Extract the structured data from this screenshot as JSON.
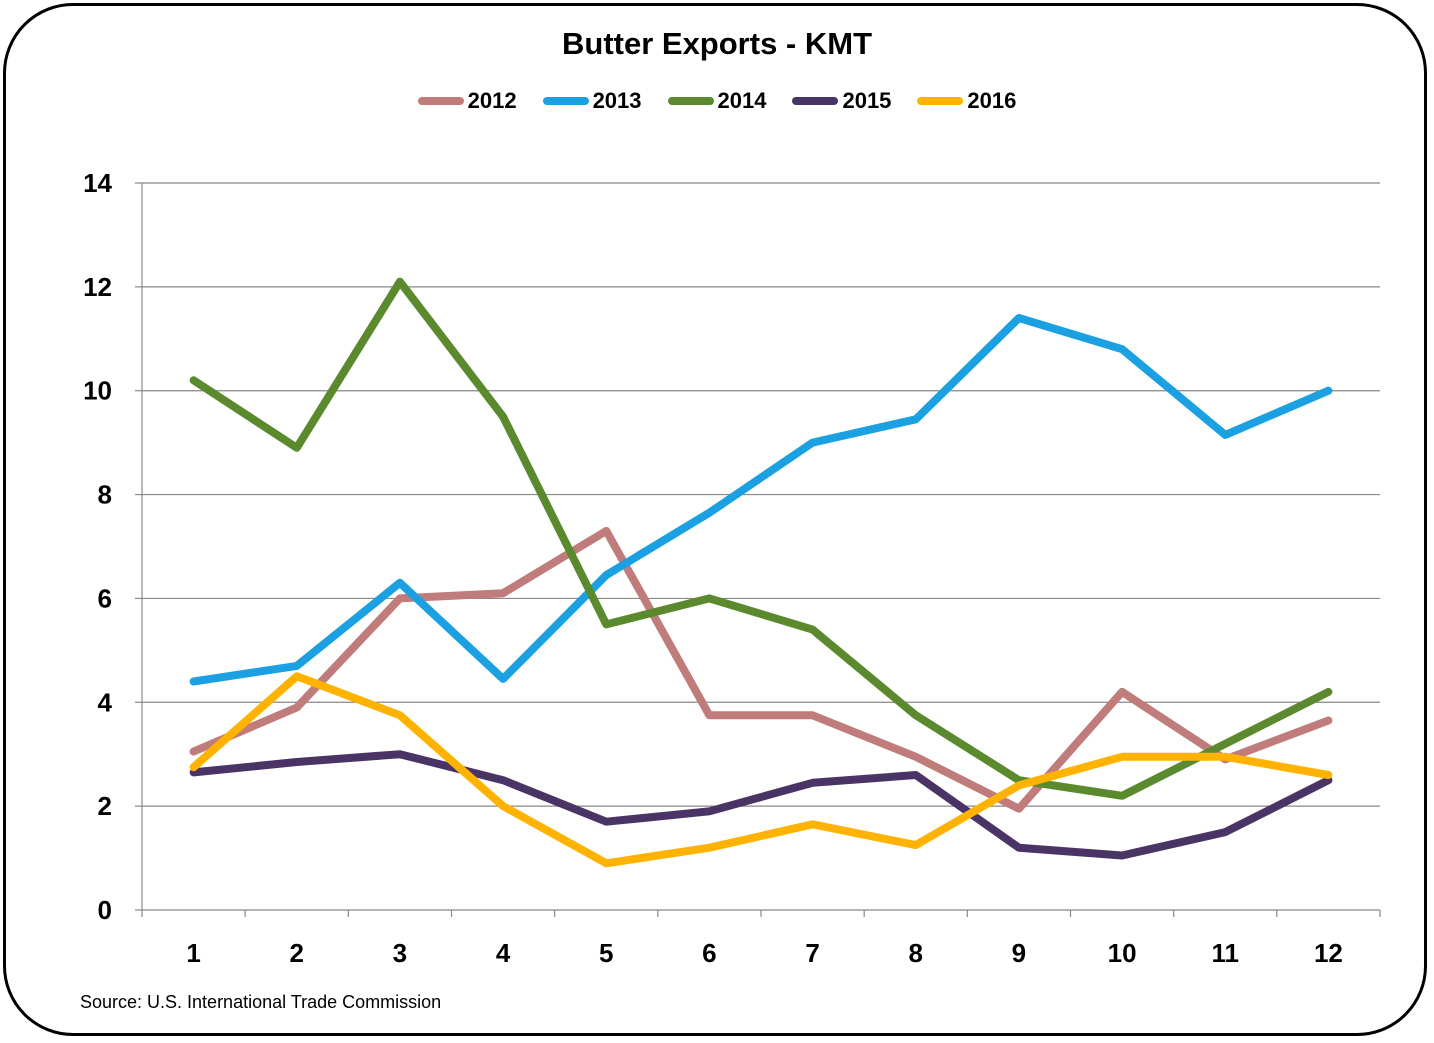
{
  "chart_data": {
    "type": "line",
    "title": "Butter Exports - KMT",
    "xlabel": "",
    "ylabel": "",
    "categories": [
      "1",
      "2",
      "3",
      "4",
      "5",
      "6",
      "7",
      "8",
      "9",
      "10",
      "11",
      "12"
    ],
    "ylim": [
      0,
      14
    ],
    "yticks": [
      0,
      2,
      4,
      6,
      8,
      10,
      12,
      14
    ],
    "grid": true,
    "legend_position": "top",
    "series": [
      {
        "name": "2012",
        "color": "#C07C7A",
        "values": [
          3.05,
          3.9,
          6.0,
          6.1,
          7.3,
          3.75,
          3.75,
          2.95,
          1.95,
          4.2,
          2.9,
          3.65
        ]
      },
      {
        "name": "2013",
        "color": "#1BA1E2",
        "values": [
          4.4,
          4.7,
          6.3,
          4.45,
          6.45,
          7.65,
          9.0,
          9.45,
          11.4,
          10.8,
          9.15,
          10.0
        ]
      },
      {
        "name": "2014",
        "color": "#5B8A2E",
        "values": [
          10.2,
          8.9,
          12.1,
          9.5,
          5.5,
          6.0,
          5.4,
          3.75,
          2.5,
          2.2,
          3.2,
          4.2
        ]
      },
      {
        "name": "2015",
        "color": "#4A3466",
        "values": [
          2.65,
          2.85,
          3.0,
          2.5,
          1.7,
          1.9,
          2.45,
          2.6,
          1.2,
          1.05,
          1.5,
          2.5
        ]
      },
      {
        "name": "2016",
        "color": "#FFB300",
        "values": [
          2.75,
          4.5,
          3.75,
          2.0,
          0.9,
          1.2,
          1.65,
          1.25,
          2.4,
          2.95,
          2.95,
          2.6
        ]
      }
    ],
    "source": "Source: U.S. International Trade Commission"
  }
}
